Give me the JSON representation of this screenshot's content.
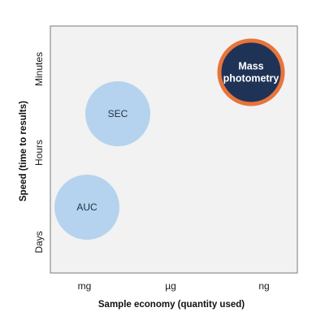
{
  "chart_data": {
    "type": "scatter",
    "title": "",
    "xlabel": "Sample economy (quantity used)",
    "ylabel": "Speed (time to results)",
    "x_categories": [
      "mg",
      "µg",
      "ng"
    ],
    "y_categories": [
      "Days",
      "Hours",
      "Minutes"
    ],
    "grid": false,
    "points": [
      {
        "label": "AUC",
        "x": "mg",
        "y": "Days",
        "highlight": false
      },
      {
        "label": "SEC",
        "x": "mg",
        "y": "Hours",
        "highlight": false
      },
      {
        "label": "Mass photometry",
        "label_lines": [
          "Mass",
          "photometry"
        ],
        "x": "ng",
        "y": "Minutes",
        "highlight": true
      }
    ]
  },
  "colors": {
    "plot_background": "#f2f2f2",
    "plot_border": "#7a7a7a",
    "bubble_fill": "#b5d3ee",
    "highlight_fill": "#1f3356",
    "highlight_ring": "#e8743b"
  }
}
